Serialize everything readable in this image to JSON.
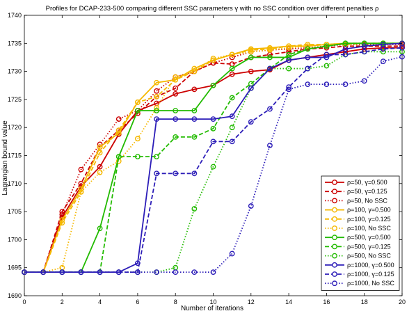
{
  "chart_data": {
    "type": "line",
    "title": "Profiles for DCAP-233-500 comparing different SSC parameters γ with no SSC condition over different penalties ρ",
    "xlabel": "Number of iterations",
    "ylabel": "Lagrangian bound value",
    "xlim": [
      0,
      20
    ],
    "ylim": [
      1690,
      1740
    ],
    "xticks": [
      0,
      2,
      4,
      6,
      8,
      10,
      12,
      14,
      16,
      18,
      20
    ],
    "yticks": [
      1690,
      1695,
      1700,
      1705,
      1710,
      1715,
      1720,
      1725,
      1730,
      1735,
      1740
    ],
    "grid": false,
    "legend_position": "bottom-right",
    "x": [
      0,
      1,
      2,
      3,
      4,
      5,
      6,
      7,
      8,
      9,
      10,
      11,
      12,
      13,
      14,
      15,
      16,
      17,
      18,
      19,
      20
    ],
    "series": [
      {
        "name": "ρ=50, γ=0.500",
        "color": "#cc0000",
        "style": "solid",
        "values": [
          1694.2,
          1694.2,
          1704.0,
          1709.5,
          1713.0,
          1718.8,
          1723.0,
          1724.3,
          1726.0,
          1726.8,
          1727.5,
          1729.5,
          1730.0,
          1730.3,
          1732.0,
          1732.5,
          1733.0,
          1733.5,
          1734.0,
          1734.2,
          1734.2
        ]
      },
      {
        "name": "ρ=50, γ=0.125",
        "color": "#cc0000",
        "style": "dashed",
        "values": [
          1694.2,
          1694.2,
          1705.0,
          1710.0,
          1716.5,
          1719.5,
          1722.5,
          1725.5,
          1727.0,
          1730.0,
          1731.5,
          1731.3,
          1732.5,
          1733.0,
          1733.5,
          1734.0,
          1734.2,
          1734.5,
          1734.5,
          1734.5,
          1734.5
        ]
      },
      {
        "name": "ρ=50, No SSC",
        "color": "#cc0000",
        "style": "dotted",
        "values": [
          1694.2,
          1694.2,
          1704.5,
          1712.5,
          1717.0,
          1721.5,
          1723.0,
          1726.5,
          1729.0,
          1730.0,
          1731.5,
          1732.5,
          1733.5,
          1733.8,
          1734.0,
          1734.2,
          1734.5,
          1734.8,
          1734.8,
          1734.8,
          1734.8
        ]
      },
      {
        "name": "ρ=100, γ=0.500",
        "color": "#f5b800",
        "style": "solid",
        "values": [
          1694.2,
          1694.2,
          1703.5,
          1709.0,
          1716.5,
          1719.0,
          1724.5,
          1728.0,
          1728.5,
          1730.5,
          1732.0,
          1733.0,
          1734.0,
          1734.2,
          1734.5,
          1734.5,
          1734.8,
          1735.0,
          1735.0,
          1735.0,
          1735.0
        ]
      },
      {
        "name": "ρ=100, γ=0.125",
        "color": "#f5b800",
        "style": "dashed",
        "values": [
          1694.2,
          1694.2,
          1703.0,
          1708.5,
          1715.5,
          1719.5,
          1724.5,
          1725.5,
          1728.5,
          1730.0,
          1732.0,
          1733.0,
          1733.8,
          1734.0,
          1734.5,
          1734.8,
          1734.8,
          1734.8,
          1735.0,
          1735.0,
          1735.0
        ]
      },
      {
        "name": "ρ=100, No SSC",
        "color": "#f5b800",
        "style": "dotted",
        "values": [
          1694.2,
          1694.2,
          1695.0,
          1708.5,
          1712.0,
          1714.0,
          1718.0,
          1723.5,
          1729.0,
          1730.0,
          1732.3,
          1733.0,
          1733.5,
          1733.8,
          1734.2,
          1734.5,
          1734.8,
          1735.0,
          1735.0,
          1735.0,
          1735.0
        ]
      },
      {
        "name": "ρ=500, γ=0.500",
        "color": "#22bb00",
        "style": "solid",
        "values": [
          1694.2,
          1694.2,
          1694.2,
          1694.2,
          1702.0,
          1714.8,
          1723.0,
          1723.0,
          1723.0,
          1723.0,
          1727.5,
          1730.5,
          1732.5,
          1732.5,
          1732.5,
          1734.0,
          1734.5,
          1735.0,
          1735.0,
          1735.0,
          1735.0
        ]
      },
      {
        "name": "ρ=500, γ=0.125",
        "color": "#22bb00",
        "style": "dashed",
        "values": [
          1694.2,
          1694.2,
          1694.2,
          1694.2,
          1694.2,
          1714.8,
          1714.8,
          1714.8,
          1718.3,
          1718.3,
          1719.8,
          1725.3,
          1727.8,
          1730.5,
          1733.0,
          1734.0,
          1734.5,
          1735.0,
          1735.0,
          1735.0,
          1735.0
        ]
      },
      {
        "name": "ρ=500, No SSC",
        "color": "#22bb00",
        "style": "dotted",
        "values": [
          1694.2,
          1694.2,
          1694.2,
          1694.2,
          1694.2,
          1694.2,
          1694.2,
          1694.2,
          1695.0,
          1705.5,
          1713.0,
          1720.0,
          1727.0,
          1730.5,
          1730.5,
          1730.5,
          1731.0,
          1733.0,
          1733.5,
          1733.5,
          1733.5
        ]
      },
      {
        "name": "ρ=1000, γ=0.500",
        "color": "#2c1db8",
        "style": "solid",
        "values": [
          1694.2,
          1694.2,
          1694.2,
          1694.2,
          1694.2,
          1694.2,
          1695.8,
          1721.5,
          1721.5,
          1721.5,
          1721.5,
          1722.0,
          1727.0,
          1730.5,
          1732.0,
          1732.5,
          1732.5,
          1734.0,
          1734.5,
          1734.8,
          1735.0
        ]
      },
      {
        "name": "ρ=1000, γ=0.125",
        "color": "#2c1db8",
        "style": "dashed",
        "values": [
          1694.2,
          1694.2,
          1694.2,
          1694.2,
          1694.2,
          1694.2,
          1694.2,
          1711.8,
          1711.8,
          1711.8,
          1717.5,
          1717.5,
          1721.0,
          1723.3,
          1727.2,
          1730.5,
          1733.0,
          1733.0,
          1733.5,
          1734.0,
          1734.2
        ]
      },
      {
        "name": "ρ=1000, No SSC",
        "color": "#2c1db8",
        "style": "dotted",
        "values": [
          1694.2,
          1694.2,
          1694.2,
          1694.2,
          1694.2,
          1694.2,
          1694.2,
          1694.2,
          1694.2,
          1694.2,
          1694.2,
          1697.5,
          1706.0,
          1716.8,
          1726.8,
          1727.7,
          1727.7,
          1727.7,
          1728.3,
          1731.8,
          1732.6
        ]
      }
    ]
  }
}
